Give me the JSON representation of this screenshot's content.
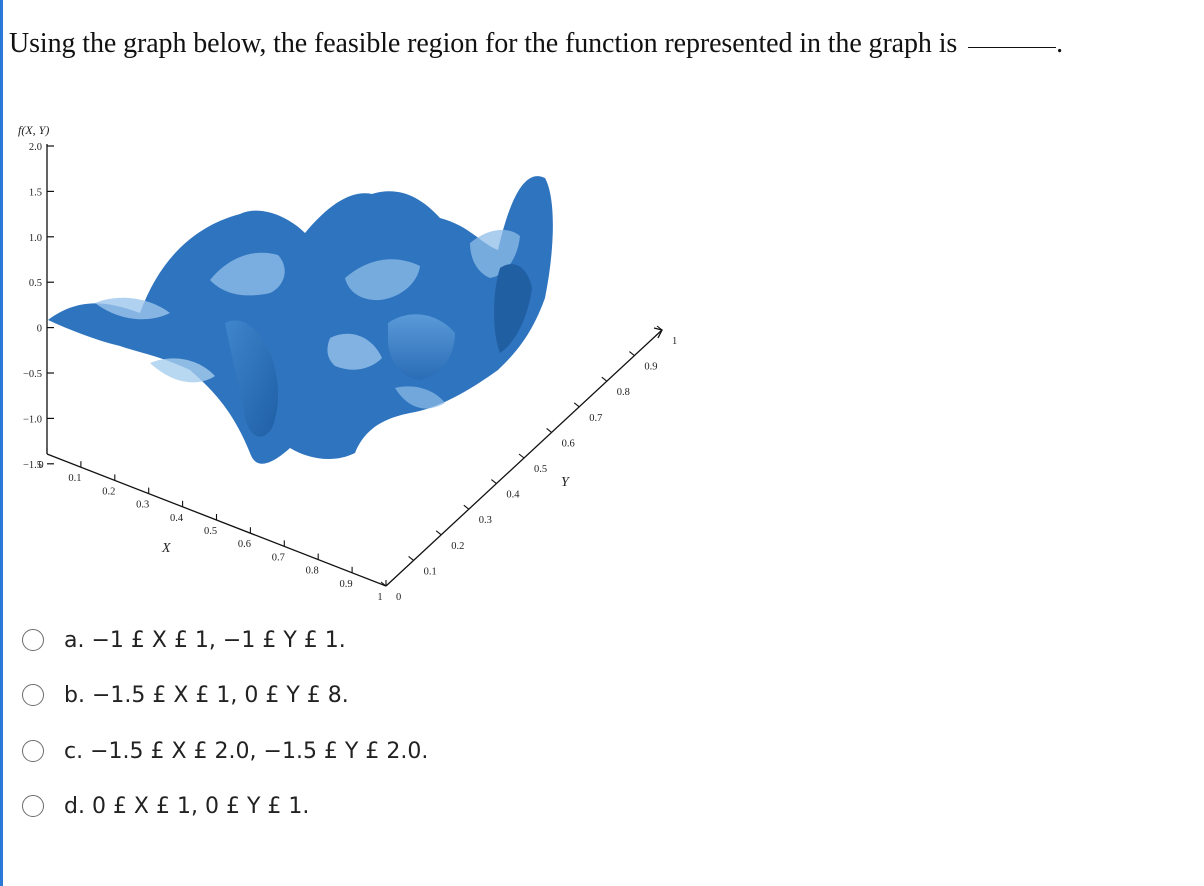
{
  "question": {
    "text": "Using the graph below, the feasible region for the function represented in the graph is",
    "end_mark": "."
  },
  "figure": {
    "z_axis_label": "f(X, Y)",
    "x_axis_label": "X",
    "y_axis_label": "Y",
    "z_ticks": [
      "2.0",
      "1.5",
      "1.0",
      "0.5",
      "0",
      "−0.5",
      "−1.0",
      "−1.5"
    ],
    "x_ticks": [
      "0",
      "0.1",
      "0.2",
      "0.3",
      "0.4",
      "0.5",
      "0.6",
      "0.7",
      "0.8",
      "0.9",
      "1"
    ],
    "y_ticks": [
      "0",
      "0.1",
      "0.2",
      "0.3",
      "0.4",
      "0.5",
      "0.6",
      "0.7",
      "0.8",
      "0.9",
      "1"
    ],
    "surface_colors": {
      "dark": "#2b6fb8",
      "mid": "#3f86cc",
      "light": "#8fbde8"
    }
  },
  "options": [
    {
      "label": "a. −1 £ X £ 1, −1 £ Y £ 1."
    },
    {
      "label": "b. −1.5 £ X £ 1, 0 £ Y £ 8."
    },
    {
      "label": "c. −1.5 £ X £ 2.0, −1.5 £ Y £ 2.0."
    },
    {
      "label": "d. 0 £ X £ 1, 0 £ Y £ 1."
    }
  ]
}
